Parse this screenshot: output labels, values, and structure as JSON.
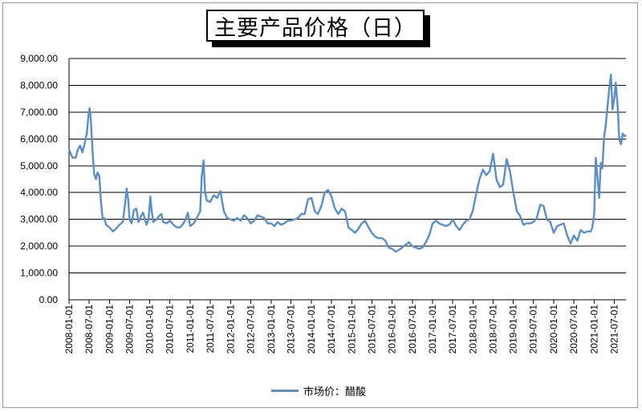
{
  "chart_data": {
    "type": "line",
    "title": "主要产品价格（日）",
    "ylim": [
      0,
      9000
    ],
    "yticks": [
      0,
      1000,
      2000,
      3000,
      4000,
      5000,
      6000,
      7000,
      8000,
      9000
    ],
    "ytick_labels": [
      "0.00",
      "1,000.00",
      "2,000.00",
      "3,000.00",
      "4,000.00",
      "5,000.00",
      "6,000.00",
      "7,000.00",
      "8,000.00",
      "9,000.00"
    ],
    "xlim": [
      "2008-01-01",
      "2021-10-15"
    ],
    "xtick_labels": [
      "2008-01-01",
      "2008-07-01",
      "2009-01-01",
      "2009-07-01",
      "2010-01-01",
      "2010-07-01",
      "2011-01-01",
      "2011-07-01",
      "2012-01-01",
      "2012-07-01",
      "2013-01-01",
      "2013-07-01",
      "2014-01-01",
      "2014-07-01",
      "2015-01-01",
      "2015-07-01",
      "2016-01-01",
      "2016-07-01",
      "2017-01-01",
      "2017-07-01",
      "2018-01-01",
      "2018-07-01",
      "2019-01-01",
      "2019-07-01",
      "2020-01-01",
      "2020-07-01",
      "2021-01-01",
      "2021-07-01"
    ],
    "grid": "horizontal",
    "legend_position": "bottom",
    "series": [
      {
        "name": "市场价：醋酸",
        "color": "#5b8ec6",
        "x": [
          "2008-01-01",
          "2008-02-01",
          "2008-03-01",
          "2008-03-20",
          "2008-04-10",
          "2008-05-01",
          "2008-05-20",
          "2008-06-10",
          "2008-06-25",
          "2008-07-05",
          "2008-07-15",
          "2008-08-01",
          "2008-08-15",
          "2008-09-01",
          "2008-09-15",
          "2008-10-01",
          "2008-10-15",
          "2008-11-01",
          "2008-11-15",
          "2008-12-01",
          "2009-01-01",
          "2009-02-01",
          "2009-03-01",
          "2009-04-01",
          "2009-05-01",
          "2009-05-20",
          "2009-06-05",
          "2009-06-20",
          "2009-07-01",
          "2009-07-20",
          "2009-08-10",
          "2009-09-01",
          "2009-09-20",
          "2009-10-10",
          "2009-11-01",
          "2009-12-01",
          "2009-12-20",
          "2010-01-05",
          "2010-01-15",
          "2010-02-01",
          "2010-03-01",
          "2010-04-01",
          "2010-04-15",
          "2010-05-01",
          "2010-06-01",
          "2010-07-01",
          "2010-08-01",
          "2010-09-01",
          "2010-10-01",
          "2010-11-01",
          "2010-11-20",
          "2010-12-10",
          "2011-01-01",
          "2011-02-01",
          "2011-03-01",
          "2011-04-01",
          "2011-04-15",
          "2011-05-01",
          "2011-05-15",
          "2011-06-01",
          "2011-07-01",
          "2011-08-01",
          "2011-09-01",
          "2011-10-01",
          "2011-11-01",
          "2011-12-01",
          "2012-01-01",
          "2012-02-01",
          "2012-03-01",
          "2012-04-01",
          "2012-05-01",
          "2012-06-01",
          "2012-07-01",
          "2012-08-01",
          "2012-09-01",
          "2012-10-01",
          "2012-11-01",
          "2012-12-01",
          "2013-01-01",
          "2013-02-01",
          "2013-03-01",
          "2013-04-01",
          "2013-05-01",
          "2013-06-01",
          "2013-07-01",
          "2013-08-01",
          "2013-09-01",
          "2013-10-01",
          "2013-11-01",
          "2013-12-01",
          "2014-01-01",
          "2014-02-01",
          "2014-03-01",
          "2014-04-01",
          "2014-05-01",
          "2014-06-01",
          "2014-07-01",
          "2014-08-01",
          "2014-09-01",
          "2014-10-01",
          "2014-11-01",
          "2014-12-01",
          "2015-01-01",
          "2015-02-01",
          "2015-03-01",
          "2015-04-01",
          "2015-05-01",
          "2015-06-01",
          "2015-07-01",
          "2015-08-01",
          "2015-09-01",
          "2015-10-01",
          "2015-11-01",
          "2015-12-01",
          "2016-01-01",
          "2016-02-01",
          "2016-03-01",
          "2016-04-01",
          "2016-05-01",
          "2016-06-01",
          "2016-07-01",
          "2016-08-01",
          "2016-09-01",
          "2016-10-01",
          "2016-11-01",
          "2016-12-01",
          "2017-01-01",
          "2017-02-01",
          "2017-03-01",
          "2017-04-01",
          "2017-05-01",
          "2017-06-01",
          "2017-07-01",
          "2017-08-01",
          "2017-09-01",
          "2017-10-01",
          "2017-11-01",
          "2017-12-01",
          "2018-01-01",
          "2018-02-01",
          "2018-03-01",
          "2018-04-01",
          "2018-05-01",
          "2018-06-01",
          "2018-07-01",
          "2018-08-01",
          "2018-09-01",
          "2018-10-01",
          "2018-11-01",
          "2018-12-01",
          "2019-01-01",
          "2019-02-01",
          "2019-03-01",
          "2019-04-01",
          "2019-05-01",
          "2019-06-01",
          "2019-07-01",
          "2019-08-01",
          "2019-09-01",
          "2019-10-01",
          "2019-11-01",
          "2019-12-01",
          "2020-01-01",
          "2020-02-01",
          "2020-03-01",
          "2020-04-01",
          "2020-05-01",
          "2020-06-01",
          "2020-07-01",
          "2020-08-01",
          "2020-09-01",
          "2020-10-01",
          "2020-11-01",
          "2020-12-01",
          "2020-12-15",
          "2021-01-01",
          "2021-01-15",
          "2021-02-01",
          "2021-02-15",
          "2021-03-01",
          "2021-03-15",
          "2021-04-01",
          "2021-04-15",
          "2021-05-01",
          "2021-05-15",
          "2021-06-01",
          "2021-06-15",
          "2021-07-01",
          "2021-07-15",
          "2021-08-01",
          "2021-08-15",
          "2021-09-01",
          "2021-09-15",
          "2021-10-01",
          "2021-10-15"
        ],
        "y": [
          5600,
          5300,
          5300,
          5600,
          5750,
          5500,
          5800,
          6200,
          6900,
          7150,
          6800,
          5500,
          4700,
          4500,
          4750,
          4600,
          3700,
          3000,
          3050,
          2800,
          2700,
          2550,
          2650,
          2800,
          2900,
          3500,
          4150,
          3700,
          3000,
          2850,
          3350,
          3400,
          2900,
          3100,
          3250,
          2800,
          3000,
          3850,
          3400,
          2900,
          3000,
          3150,
          3200,
          2900,
          2850,
          2950,
          2800,
          2700,
          2700,
          2850,
          3000,
          3250,
          2750,
          2850,
          3050,
          3300,
          4600,
          5200,
          4000,
          3700,
          3650,
          3900,
          3800,
          4050,
          3300,
          3050,
          3000,
          2950,
          3050,
          2950,
          3150,
          3050,
          2850,
          2950,
          3150,
          3100,
          3050,
          2850,
          2850,
          2750,
          2900,
          2800,
          2850,
          2950,
          2950,
          3000,
          3050,
          3200,
          3200,
          3750,
          3800,
          3300,
          3200,
          3500,
          4000,
          4100,
          3850,
          3400,
          3200,
          3400,
          3300,
          2700,
          2600,
          2500,
          2650,
          2850,
          2950,
          2700,
          2500,
          2350,
          2300,
          2300,
          2200,
          1950,
          1900,
          1800,
          1850,
          1950,
          2050,
          2150,
          2000,
          1950,
          1900,
          1950,
          2150,
          2400,
          2850,
          2950,
          2850,
          2800,
          2750,
          2800,
          3000,
          2750,
          2600,
          2800,
          2950,
          3000,
          3350,
          4000,
          4500,
          4850,
          4650,
          4800,
          5450,
          4500,
          4200,
          4300,
          5250,
          4800,
          4000,
          3300,
          3150,
          2800,
          2850,
          2850,
          2900,
          3050,
          3550,
          3500,
          3000,
          2900,
          2500,
          2750,
          2800,
          2850,
          2400,
          2100,
          2400,
          2200,
          2600,
          2500,
          2550,
          2550,
          2700,
          3200,
          5300,
          4500,
          3800,
          5100,
          4900,
          6100,
          6500,
          7200,
          7800,
          8400,
          7100,
          7500,
          8100,
          7200,
          6000,
          5800,
          6200,
          6100,
          6150
        ]
      }
    ]
  }
}
